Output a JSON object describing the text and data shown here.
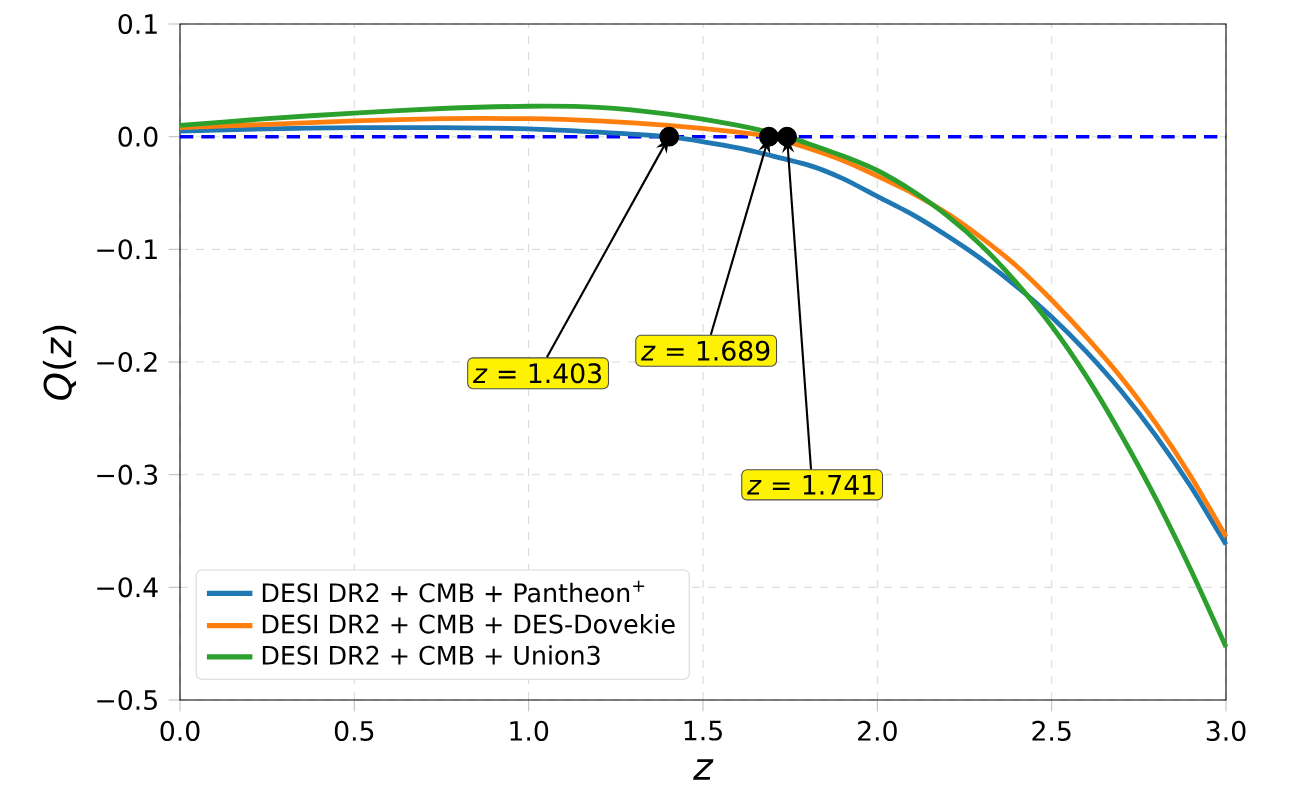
{
  "chart_data": {
    "type": "line",
    "xlabel": "z",
    "ylabel": "*Q*(*z*)",
    "xlim": [
      0.0,
      3.0
    ],
    "ylim": [
      -0.5,
      0.1
    ],
    "xticks": [
      {
        "value": 0,
        "label": "0.0"
      },
      0.5,
      {
        "value": 1,
        "label": "1.0"
      },
      1.5,
      {
        "value": 2,
        "label": "2.0"
      },
      2.5,
      {
        "value": 3,
        "label": "3.0"
      }
    ],
    "yticks": [
      {
        "value": -0.5,
        "label": "−0.5"
      },
      {
        "value": -0.4,
        "label": "−0.4"
      },
      {
        "value": -0.3,
        "label": "−0.3"
      },
      {
        "value": -0.2,
        "label": "−0.2"
      },
      {
        "value": -0.1,
        "label": "−0.1"
      },
      {
        "value": 0,
        "label": "0.0"
      },
      0.1
    ],
    "grid": true,
    "legend": "bottom left",
    "series": [
      {
        "name": "DESI DR2 + CMB + Pantheon$^{+}$",
        "color": "#1f77b4",
        "x": [
          0,
          0.25,
          0.5,
          0.75,
          1.0,
          1.2,
          1.403,
          1.6,
          1.8,
          1.9,
          2.0,
          2.1,
          2.2,
          2.3,
          2.4,
          2.5,
          2.6,
          2.7,
          2.8,
          2.9,
          3.0
        ],
        "values": [
          0.005,
          0.007,
          0.008,
          0.008,
          0.007,
          0.004,
          0.0,
          -0.01,
          -0.025,
          -0.037,
          -0.053,
          -0.069,
          -0.088,
          -0.109,
          -0.133,
          -0.16,
          -0.191,
          -0.226,
          -0.266,
          -0.311,
          -0.362
        ]
      },
      {
        "name": "DESI DR2 + CMB + DES-Dovekie",
        "color": "#ff7f0e",
        "x": [
          0,
          0.25,
          0.5,
          0.75,
          1.0,
          1.2,
          1.4,
          1.6,
          1.689,
          1.8,
          1.9,
          2.0,
          2.1,
          2.2,
          2.3,
          2.4,
          2.5,
          2.6,
          2.7,
          2.8,
          2.9,
          3.0
        ],
        "values": [
          0.008,
          0.011,
          0.014,
          0.016,
          0.016,
          0.014,
          0.01,
          0.004,
          0.0,
          -0.01,
          -0.021,
          -0.035,
          -0.05,
          -0.068,
          -0.09,
          -0.115,
          -0.145,
          -0.178,
          -0.214,
          -0.255,
          -0.302,
          -0.355
        ]
      },
      {
        "name": "DESI DR2 + CMB + Union3",
        "color": "#2ca02c",
        "x": [
          0,
          0.25,
          0.5,
          0.75,
          1.0,
          1.2,
          1.4,
          1.6,
          1.741,
          1.8,
          1.9,
          2.0,
          2.1,
          2.2,
          2.3,
          2.4,
          2.5,
          2.6,
          2.7,
          2.8,
          2.9,
          3.0
        ],
        "values": [
          0.01,
          0.016,
          0.021,
          0.025,
          0.027,
          0.026,
          0.02,
          0.01,
          0.0,
          -0.006,
          -0.017,
          -0.03,
          -0.048,
          -0.07,
          -0.097,
          -0.13,
          -0.168,
          -0.213,
          -0.265,
          -0.322,
          -0.385,
          -0.453
        ]
      },
      {
        "type": "scatter",
        "marker": "circle",
        "color": "#000000",
        "x": [
          1.403,
          1.689,
          1.741
        ],
        "values": [
          0,
          0,
          0
        ]
      }
    ],
    "ref_lines": [
      {
        "axis": "y",
        "value": 0,
        "color": "#0000ff",
        "line_style": "dashed"
      }
    ],
    "annotations": [
      {
        "text": "*z* = 1.403",
        "x": 1.403,
        "y": 0
      },
      {
        "text": "*z* = 1.689",
        "x": 1.689,
        "y": 0
      },
      {
        "text": "*z* = 1.741",
        "x": 1.741,
        "y": 0
      }
    ]
  }
}
